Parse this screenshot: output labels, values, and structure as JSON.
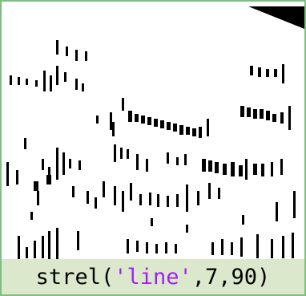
{
  "caption": {
    "parts": [
      "strel(",
      "'line'",
      ",7,90)"
    ]
  }
}
